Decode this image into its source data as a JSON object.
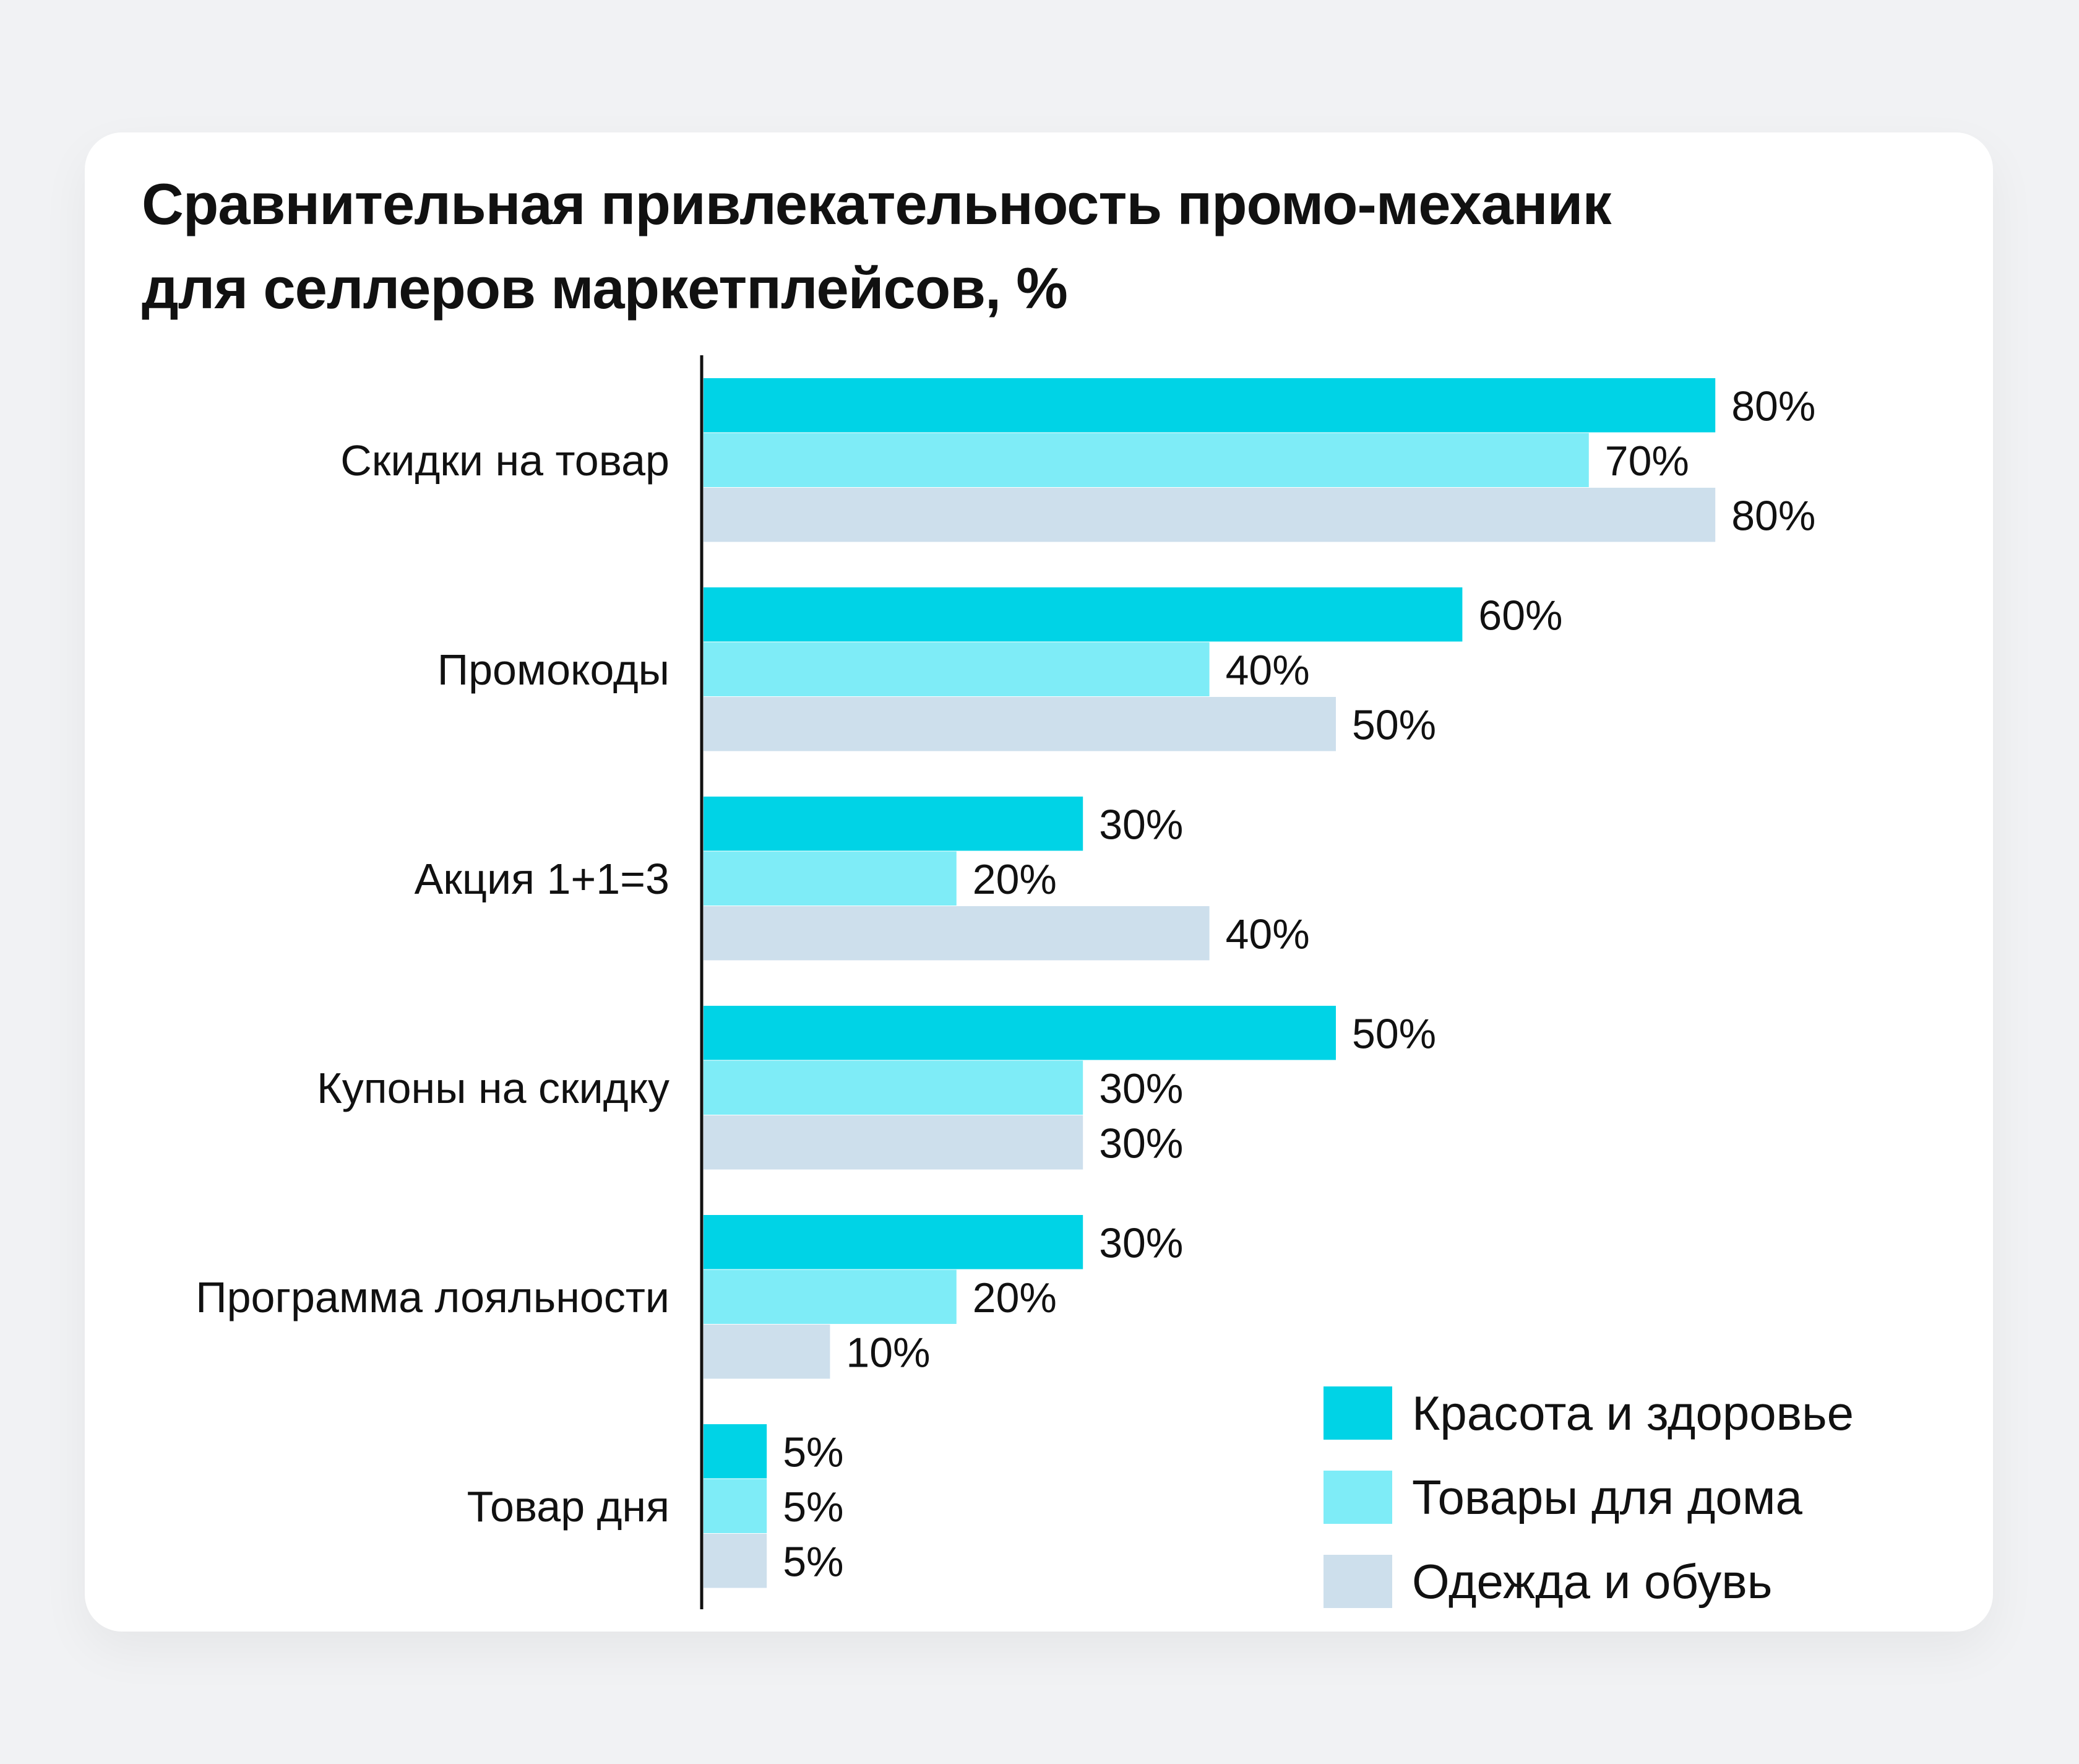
{
  "chart_data": {
    "type": "bar",
    "orientation": "horizontal",
    "title": "Сравнительная привлекательность промо-механик для селлеров маркетплейсов, %",
    "title_lines": [
      "Сравнительная привлекательность промо-механик",
      "для селлеров маркетплейсов, %"
    ],
    "categories": [
      "Скидки на товар",
      "Промокоды",
      "Акция 1+1=3",
      "Купоны на скидку",
      "Программа лояльности",
      "Товар дня"
    ],
    "series": [
      {
        "name": "Красота и здоровье",
        "color": "#00d3e6",
        "values": [
          80,
          60,
          30,
          50,
          30,
          5
        ]
      },
      {
        "name": "Товары для дома",
        "color": "#7eecf7",
        "values": [
          70,
          40,
          20,
          30,
          20,
          5
        ]
      },
      {
        "name": "Одежда и обувь",
        "color": "#cddfec",
        "values": [
          80,
          50,
          40,
          30,
          10,
          5
        ]
      }
    ],
    "value_suffix": "%",
    "xlim": [
      0,
      100
    ],
    "grid": false,
    "legend_position": "bottom-right",
    "xaxis_visible": false
  }
}
